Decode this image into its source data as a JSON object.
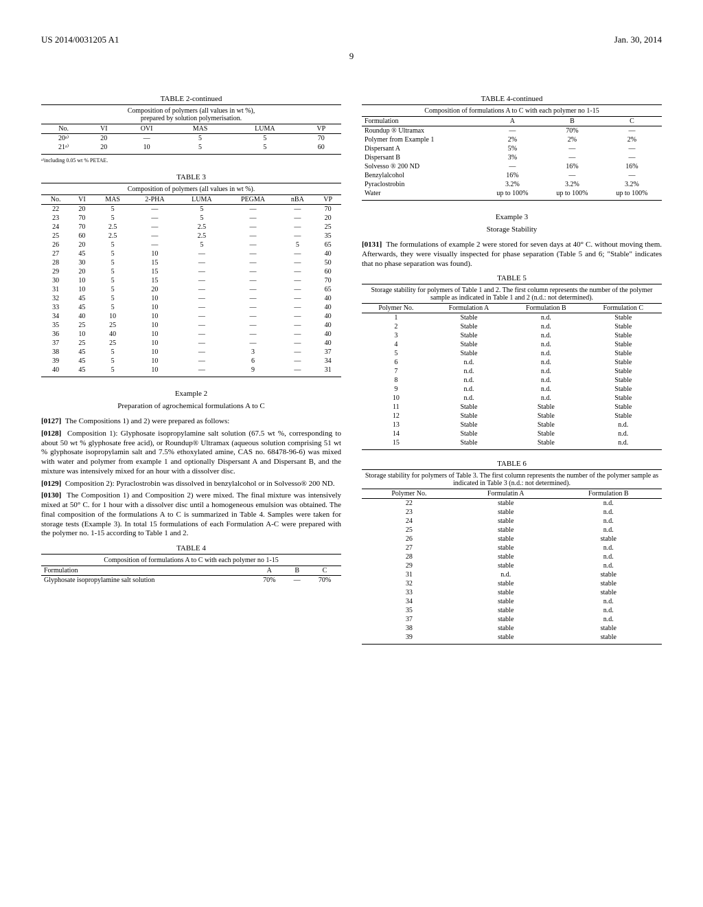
{
  "header": {
    "pubno": "US 2014/0031205 A1",
    "date": "Jan. 30, 2014",
    "page": "9"
  },
  "table2": {
    "title": "TABLE 2-continued",
    "caption": "Composition of polymers (all values in wt %),\nprepared by solution polymerisation.",
    "columns": [
      "No.",
      "VI",
      "OVI",
      "MAS",
      "LUMA",
      "VP"
    ],
    "rows": [
      [
        "20ᵃ⁾",
        "20",
        "—",
        "5",
        "5",
        "70"
      ],
      [
        "21ᵃ⁾",
        "20",
        "10",
        "5",
        "5",
        "60"
      ]
    ],
    "footnote": "ᵃ⁾including 0.05 wt % PETAE."
  },
  "table3": {
    "title": "TABLE 3",
    "caption": "Composition of polymers (all values in wt %).",
    "columns": [
      "No.",
      "VI",
      "MAS",
      "2-PHA",
      "LUMA",
      "PEGMA",
      "nBA",
      "VP"
    ],
    "rows": [
      [
        "22",
        "20",
        "5",
        "—",
        "5",
        "—",
        "—",
        "70"
      ],
      [
        "23",
        "70",
        "5",
        "—",
        "5",
        "—",
        "—",
        "20"
      ],
      [
        "24",
        "70",
        "2.5",
        "—",
        "2.5",
        "—",
        "—",
        "25"
      ],
      [
        "25",
        "60",
        "2.5",
        "—",
        "2.5",
        "—",
        "—",
        "35"
      ],
      [
        "26",
        "20",
        "5",
        "—",
        "5",
        "—",
        "5",
        "65"
      ],
      [
        "27",
        "45",
        "5",
        "10",
        "—",
        "—",
        "—",
        "40"
      ],
      [
        "28",
        "30",
        "5",
        "15",
        "—",
        "—",
        "—",
        "50"
      ],
      [
        "29",
        "20",
        "5",
        "15",
        "—",
        "—",
        "—",
        "60"
      ],
      [
        "30",
        "10",
        "5",
        "15",
        "—",
        "—",
        "—",
        "70"
      ],
      [
        "31",
        "10",
        "5",
        "20",
        "—",
        "—",
        "—",
        "65"
      ],
      [
        "32",
        "45",
        "5",
        "10",
        "—",
        "—",
        "—",
        "40"
      ],
      [
        "33",
        "45",
        "5",
        "10",
        "—",
        "—",
        "—",
        "40"
      ],
      [
        "34",
        "40",
        "10",
        "10",
        "—",
        "—",
        "—",
        "40"
      ],
      [
        "35",
        "25",
        "25",
        "10",
        "—",
        "—",
        "—",
        "40"
      ],
      [
        "36",
        "10",
        "40",
        "10",
        "—",
        "—",
        "—",
        "40"
      ],
      [
        "37",
        "25",
        "25",
        "10",
        "—",
        "—",
        "—",
        "40"
      ],
      [
        "38",
        "45",
        "5",
        "10",
        "—",
        "3",
        "—",
        "37"
      ],
      [
        "39",
        "45",
        "5",
        "10",
        "—",
        "6",
        "—",
        "34"
      ],
      [
        "40",
        "45",
        "5",
        "10",
        "—",
        "9",
        "—",
        "31"
      ]
    ]
  },
  "example2": {
    "title": "Example 2",
    "sub": "Preparation of agrochemical formulations A to C",
    "p0127": "The Compositions 1) and 2) were prepared as follows:",
    "p0128": "Composition 1): Glyphosate isopropylamine salt solution (67.5 wt %, corresponding to about 50 wt % glyphosate free acid), or Roundup® Ultramax (aqueous solution comprising 51 wt % glyphosate isopropylamin salt and 7.5% ethoxylated amine, CAS no. 68478-96-6) was mixed with water and polymer from example 1 and optionally Dispersant A and Dispersant B, and the mixture was intensively mixed for an hour with a dissolver disc.",
    "p0129": "Composition 2): Pyraclostrobin was dissolved in benzylalcohol or in Solvesso® 200 ND.",
    "p0130": "The Composition 1) and Composition 2) were mixed. The final mixture was intensively mixed at 50° C. for 1 hour with a dissolver disc until a homogeneous emulsion was obtained. The final composition of the formulations A to C is summarized in Table 4. Samples were taken for storage tests (Example 3). In total 15 formulations of each Formulation A-C were prepared with the polymer no. 1-15 according to Table 1 and 2."
  },
  "table4a": {
    "title": "TABLE 4",
    "caption": "Composition of formulations A to C with each polymer no 1-15",
    "columns": [
      "Formulation",
      "A",
      "B",
      "C"
    ],
    "rows": [
      [
        "Glyphosate isopropylamine salt solution",
        "70%",
        "—",
        "70%"
      ]
    ]
  },
  "table4b": {
    "title": "TABLE 4-continued",
    "caption": "Composition of formulations A to C with each polymer no 1-15",
    "columns": [
      "Formulation",
      "A",
      "B",
      "C"
    ],
    "rows": [
      [
        "Roundup ® Ultramax",
        "—",
        "70%",
        "—"
      ],
      [
        "Polymer from Example 1",
        "2%",
        "2%",
        "2%"
      ],
      [
        "Dispersant A",
        "5%",
        "—",
        "—"
      ],
      [
        "Dispersant B",
        "3%",
        "—",
        "—"
      ],
      [
        "Solvesso ® 200 ND",
        "—",
        "16%",
        "16%"
      ],
      [
        "Benzylalcohol",
        "16%",
        "—",
        "—"
      ],
      [
        "Pyraclostrobin",
        "3.2%",
        "3.2%",
        "3.2%"
      ],
      [
        "Water",
        "up to 100%",
        "up to 100%",
        "up to 100%"
      ]
    ]
  },
  "example3": {
    "title": "Example 3",
    "sub": "Storage Stability",
    "p0131": "The formulations of example 2 were stored for seven days at 40° C. without moving them. Afterwards, they were visually inspected for phase separation (Table 5 and 6; \"Stable\" indicates that no phase separation was found)."
  },
  "table5": {
    "title": "TABLE 5",
    "caption": "Storage stability for polymers of Table 1 and 2. The first column represents the number of the polymer sample as indicated in Table 1 and 2 (n.d.: not determined).",
    "columns": [
      "Polymer No.",
      "Formulation A",
      "Formulation B",
      "Formulation C"
    ],
    "rows": [
      [
        "1",
        "Stable",
        "n.d.",
        "Stable"
      ],
      [
        "2",
        "Stable",
        "n.d.",
        "Stable"
      ],
      [
        "3",
        "Stable",
        "n.d.",
        "Stable"
      ],
      [
        "4",
        "Stable",
        "n.d.",
        "Stable"
      ],
      [
        "5",
        "Stable",
        "n.d.",
        "Stable"
      ],
      [
        "6",
        "n.d.",
        "n.d.",
        "Stable"
      ],
      [
        "7",
        "n.d.",
        "n.d.",
        "Stable"
      ],
      [
        "8",
        "n.d.",
        "n.d.",
        "Stable"
      ],
      [
        "9",
        "n.d.",
        "n.d.",
        "Stable"
      ],
      [
        "10",
        "n.d.",
        "n.d.",
        "Stable"
      ],
      [
        "11",
        "Stable",
        "Stable",
        "Stable"
      ],
      [
        "12",
        "Stable",
        "Stable",
        "Stable"
      ],
      [
        "13",
        "Stable",
        "Stable",
        "n.d."
      ],
      [
        "14",
        "Stable",
        "Stable",
        "n.d."
      ],
      [
        "15",
        "Stable",
        "Stable",
        "n.d."
      ]
    ]
  },
  "table6": {
    "title": "TABLE 6",
    "caption": "Storage stability for polymers of Table 3. The first column represents the number of the polymer sample as indicated in Table 3 (n.d.: not determined).",
    "columns": [
      "Polymer No.",
      "Formulatin A",
      "Formulation B"
    ],
    "rows": [
      [
        "22",
        "stable",
        "n.d."
      ],
      [
        "23",
        "stable",
        "n.d."
      ],
      [
        "24",
        "stable",
        "n.d."
      ],
      [
        "25",
        "stable",
        "n.d."
      ],
      [
        "26",
        "stable",
        "stable"
      ],
      [
        "27",
        "stable",
        "n.d."
      ],
      [
        "28",
        "stable",
        "n.d."
      ],
      [
        "29",
        "stable",
        "n.d."
      ],
      [
        "31",
        "n.d.",
        "stable"
      ],
      [
        "32",
        "stable",
        "stable"
      ],
      [
        "33",
        "stable",
        "stable"
      ],
      [
        "34",
        "stable",
        "n.d."
      ],
      [
        "35",
        "stable",
        "n.d."
      ],
      [
        "37",
        "stable",
        "n.d."
      ],
      [
        "38",
        "stable",
        "stable"
      ],
      [
        "39",
        "stable",
        "stable"
      ]
    ]
  }
}
